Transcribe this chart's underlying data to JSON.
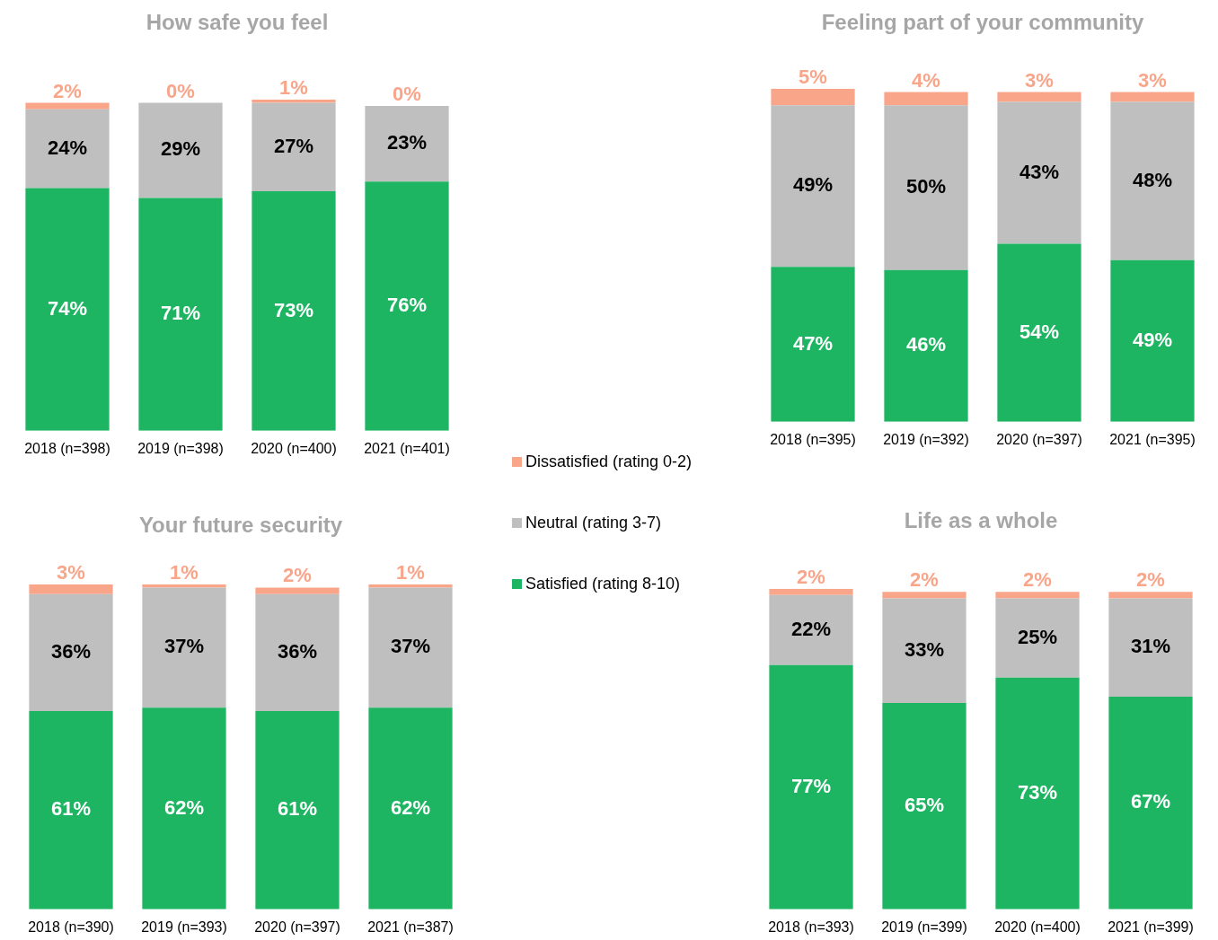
{
  "chart_data": [
    {
      "type": "bar",
      "title": "How safe you feel",
      "categories": [
        "2018 (n=398)",
        "2019 (n=398)",
        "2020 (n=400)",
        "2021 (n=401)"
      ],
      "stacked": true,
      "legend": "right",
      "series": [
        {
          "name": "Satisfied (rating 8-10)",
          "color": "#1db462",
          "values": [
            74,
            71,
            73,
            76
          ],
          "value_labels": [
            "74%",
            "71%",
            "73%",
            "76%"
          ]
        },
        {
          "name": "Neutral (rating 3-7)",
          "color": "#bfbfbf",
          "values": [
            24,
            29,
            27,
            23
          ],
          "value_labels": [
            "24%",
            "29%",
            "27%",
            "23%"
          ]
        },
        {
          "name": "Dissatisfied (rating 0-2)",
          "color": "#f9a58a",
          "values": [
            2,
            0,
            1,
            0
          ],
          "value_labels": [
            "2%",
            "0%",
            "1%",
            "0%"
          ]
        }
      ]
    },
    {
      "type": "bar",
      "title": "Feeling part of your community",
      "categories": [
        "2018 (n=395)",
        "2019 (n=392)",
        "2020 (n=397)",
        "2021 (n=395)"
      ],
      "stacked": true,
      "series": [
        {
          "color": "#1db462",
          "values": [
            47,
            46,
            54,
            49
          ],
          "value_labels": [
            "47%",
            "46%",
            "54%",
            "49%"
          ]
        },
        {
          "color": "#bfbfbf",
          "values": [
            49,
            50,
            43,
            48
          ],
          "value_labels": [
            "49%",
            "50%",
            "43%",
            "48%"
          ]
        },
        {
          "color": "#f9a58a",
          "values": [
            5,
            4,
            3,
            3
          ],
          "value_labels": [
            "5%",
            "4%",
            "3%",
            "3%"
          ]
        }
      ]
    },
    {
      "type": "bar",
      "title": "Your future security",
      "categories": [
        "2018 (n=390)",
        "2019 (n=393)",
        "2020 (n=397)",
        "2021 (n=387)"
      ],
      "stacked": true,
      "series": [
        {
          "color": "#1db462",
          "values": [
            61,
            62,
            61,
            62
          ],
          "value_labels": [
            "61%",
            "62%",
            "61%",
            "62%"
          ]
        },
        {
          "color": "#bfbfbf",
          "values": [
            36,
            37,
            36,
            37
          ],
          "value_labels": [
            "36%",
            "37%",
            "36%",
            "37%"
          ]
        },
        {
          "color": "#f9a58a",
          "values": [
            3,
            1,
            2,
            1
          ],
          "value_labels": [
            "3%",
            "1%",
            "2%",
            "1%"
          ]
        }
      ]
    },
    {
      "type": "bar",
      "title": "Life as a whole",
      "categories": [
        "2018 (n=393)",
        "2019 (n=399)",
        "2020 (n=400)",
        "2021 (n=399)"
      ],
      "stacked": true,
      "series": [
        {
          "color": "#1db462",
          "values": [
            77,
            65,
            73,
            67
          ],
          "value_labels": [
            "77%",
            "65%",
            "73%",
            "67%"
          ]
        },
        {
          "color": "#bfbfbf",
          "values": [
            22,
            33,
            25,
            31
          ],
          "value_labels": [
            "22%",
            "33%",
            "25%",
            "31%"
          ]
        },
        {
          "color": "#f9a58a",
          "values": [
            2,
            2,
            2,
            2
          ],
          "value_labels": [
            "2%",
            "2%",
            "2%",
            "2%"
          ]
        }
      ]
    }
  ]
}
